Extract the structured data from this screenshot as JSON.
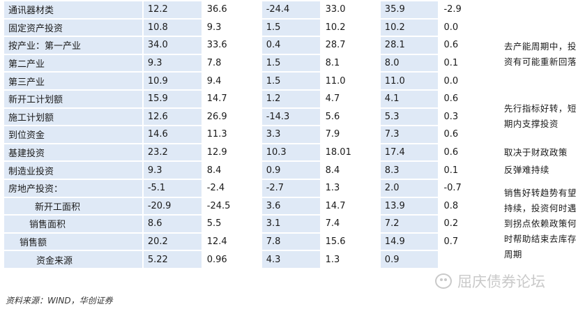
{
  "rows": [
    {
      "label": "通讯器材类",
      "v": [
        "12.2",
        "36.6",
        "-24.4",
        "33.0",
        "35.9",
        "-2.9"
      ]
    },
    {
      "label": "固定资产投资",
      "v": [
        "10.8",
        "9.3",
        "1.5",
        "10.2",
        "10.2",
        "0.0"
      ]
    },
    {
      "label": "按产业：第一产业",
      "v": [
        "34.0",
        "33.6",
        "0.4",
        "28.7",
        "28.1",
        "0.6"
      ]
    },
    {
      "label": "第二产业",
      "v": [
        "9.3",
        "7.8",
        "1.5",
        "8.1",
        "8.0",
        "0.1"
      ]
    },
    {
      "label": "第三产业",
      "v": [
        "10.9",
        "9.4",
        "1.5",
        "11.0",
        "11.0",
        "0.0"
      ]
    },
    {
      "label": "新开工计划额",
      "v": [
        "15.9",
        "14.7",
        "1.2",
        "4.7",
        "4.1",
        "0.6"
      ]
    },
    {
      "label": "施工计划额",
      "v": [
        "12.6",
        "26.9",
        "-14.3",
        "5.6",
        "5.3",
        "0.3"
      ]
    },
    {
      "label": "到位资金",
      "v": [
        "14.6",
        "11.3",
        "3.3",
        "7.9",
        "7.3",
        "0.6"
      ]
    },
    {
      "label": "基建投资",
      "v": [
        "23.2",
        "12.9",
        "10.3",
        "18.01",
        "17.4",
        "0.6"
      ]
    },
    {
      "label": "制造业投资",
      "v": [
        "9.3",
        "8.4",
        "0.9",
        "8.4",
        "8.3",
        "0.1"
      ]
    },
    {
      "label": "房地产投资：",
      "v": [
        "-5.1",
        "-2.4",
        "-2.7",
        "1.3",
        "2.0",
        "-0.7"
      ]
    },
    {
      "label": "新开工面积",
      "v": [
        "-20.9",
        "-24.5",
        "3.6",
        "14.7",
        "13.9",
        "0.8"
      ]
    },
    {
      "label": "销售面积",
      "v": [
        "8.6",
        "5.5",
        "3.1",
        "7.4",
        "7.2",
        "0.2"
      ]
    },
    {
      "label": "销售额",
      "v": [
        "20.2",
        "12.4",
        "7.8",
        "15.6",
        "14.9",
        "0.7"
      ]
    },
    {
      "label": "资金来源",
      "v": [
        "5.22",
        "0.96",
        "4.3",
        "1.3",
        "0.9",
        ""
      ]
    }
  ],
  "notes": {
    "capacity": "去产能周期中，投资有可能重新回落",
    "leading": "先行指标好转，短期内支撑投资",
    "infra": "取决于财政政策",
    "manufacturing": "反弹难持续",
    "realestate": "销售好转趋势有望持续，投资何时遇到拐点依赖政策何时帮助结束去库存周期"
  },
  "source": "资料来源：WIND，华创证券",
  "watermark": "屈庆债券论坛"
}
